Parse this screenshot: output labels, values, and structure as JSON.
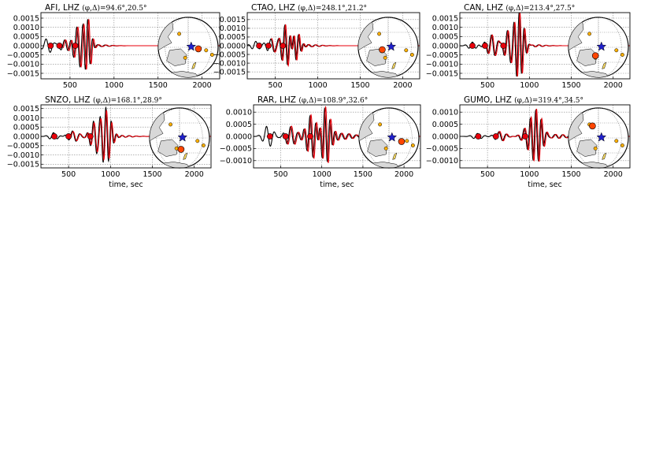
{
  "figure": {
    "colors": {
      "observed": "#000000",
      "synthetic": "#e8000b",
      "marker_face": "#e8000b",
      "grid": "#888888",
      "map_land": "#d8d8d8",
      "map_event": "#2020cc",
      "map_station": "#ff4500",
      "map_other": "#ffb000"
    },
    "icons": {
      "event": "blue-star-icon",
      "station": "orange-circle-icon",
      "other_stations": "yellow-circle-icon"
    }
  },
  "chart_data": [
    {
      "type": "line",
      "title_prefix": "AFI, LHZ",
      "title_angles": "(φ,Δ)=94.6°,20.5°",
      "xlabel": "",
      "ylabel": "",
      "xlim": [
        170,
        2200
      ],
      "ylim": [
        -0.0018,
        0.0018
      ],
      "xticks": [
        500,
        1000,
        1500,
        2000
      ],
      "xtick_labels": [
        "500",
        "1000",
        "1500",
        "2000"
      ],
      "yticks": [
        0.0015,
        0.001,
        0.0005,
        0.0,
        -0.0005,
        -0.001,
        -0.0015
      ],
      "ytick_labels": [
        "0.0015",
        "0.0010",
        "0.0005",
        "0.0000",
        "−0.0005",
        "−0.0010",
        "−0.0015"
      ],
      "grid": true,
      "markers_x": [
        280,
        380,
        560
      ],
      "packets": [
        {
          "center": 250,
          "width": 55,
          "period": 100,
          "amp": 0.0004,
          "phase": 1.5
        },
        {
          "center": 440,
          "width": 55,
          "period": 90,
          "amp": 0.0003,
          "phase": 0.0
        },
        {
          "center": 600,
          "width": 60,
          "period": 75,
          "amp": 0.0011,
          "phase": 2.0
        },
        {
          "center": 700,
          "width": 35,
          "period": 60,
          "amp": 0.0016,
          "phase": 0.0
        },
        {
          "center": 830,
          "width": 110,
          "period": 85,
          "amp": 5e-05,
          "phase": 1.0
        }
      ],
      "synthetic_scale": 1.0,
      "synthetic_shift": 12,
      "synthetic_start": 420,
      "map_station": {
        "dx": 0.34,
        "dy": 0.05
      }
    },
    {
      "type": "line",
      "title_prefix": "CTAO, LHZ",
      "title_angles": "(φ,Δ)=248.1°,21.2°",
      "xlabel": "",
      "ylabel": "",
      "xlim": [
        170,
        2200
      ],
      "ylim": [
        -0.0019,
        0.0019
      ],
      "xticks": [
        500,
        1000,
        1500,
        2000
      ],
      "xtick_labels": [
        "500",
        "1000",
        "1500",
        "2000"
      ],
      "yticks": [
        0.0015,
        0.001,
        0.0005,
        0.0,
        -0.0005,
        -0.001,
        -0.0015
      ],
      "ytick_labels": [
        "0.0015",
        "0.0010",
        "0.0005",
        "0.0000",
        "−0.0005",
        "−0.0010",
        "−0.0015"
      ],
      "grid": true,
      "markers_x": [
        310,
        420,
        590
      ],
      "packets": [
        {
          "center": 270,
          "width": 50,
          "period": 90,
          "amp": 0.00025,
          "phase": 0.0
        },
        {
          "center": 460,
          "width": 60,
          "period": 80,
          "amp": 0.0004,
          "phase": 1.0
        },
        {
          "center": 640,
          "width": 60,
          "period": 70,
          "amp": 0.0013,
          "phase": 2.5
        },
        {
          "center": 720,
          "width": 55,
          "period": 60,
          "amp": 0.0011,
          "phase": 0.5
        },
        {
          "center": 900,
          "width": 120,
          "period": 85,
          "amp": 6e-05,
          "phase": 1.0
        }
      ],
      "synthetic_scale": 1.05,
      "synthetic_shift": 10,
      "synthetic_start": 450,
      "map_station": {
        "dx": -0.2,
        "dy": 0.08
      }
    },
    {
      "type": "line",
      "title_prefix": "CAN, LHZ",
      "title_angles": "(φ,Δ)=213.4°,27.5°",
      "xlabel": "",
      "ylabel": "",
      "xlim": [
        170,
        2200
      ],
      "ylim": [
        -0.0018,
        0.0018
      ],
      "xticks": [
        500,
        1000,
        1500,
        2000
      ],
      "xtick_labels": [
        "500",
        "1000",
        "1500",
        "2000"
      ],
      "yticks": [
        0.0015,
        0.001,
        0.0005,
        0.0,
        -0.0005,
        -0.001,
        -0.0015
      ],
      "ytick_labels": [
        "0.0015",
        "0.0010",
        "0.0005",
        "0.0000",
        "−0.0005",
        "−0.0010",
        "−0.0015"
      ],
      "grid": true,
      "markers_x": [
        320,
        470,
        690
      ],
      "packets": [
        {
          "center": 320,
          "width": 50,
          "period": 90,
          "amp": 0.0002,
          "phase": 0.0
        },
        {
          "center": 560,
          "width": 65,
          "period": 85,
          "amp": 0.0006,
          "phase": 1.0
        },
        {
          "center": 760,
          "width": 60,
          "period": 75,
          "amp": 0.0009,
          "phase": 2.0
        },
        {
          "center": 880,
          "width": 50,
          "period": 60,
          "amp": 0.0017,
          "phase": 0.3
        },
        {
          "center": 1040,
          "width": 120,
          "period": 85,
          "amp": 6e-05,
          "phase": 1.0
        }
      ],
      "synthetic_scale": 1.0,
      "synthetic_shift": 10,
      "synthetic_start": 480,
      "map_station": {
        "dx": -0.1,
        "dy": 0.28
      }
    },
    {
      "type": "line",
      "title_prefix": "SNZO, LHZ",
      "title_angles": "(φ,Δ)=168.1°,28.9°",
      "xlabel": "time, sec",
      "ylabel": "",
      "xlim": [
        170,
        2200
      ],
      "ylim": [
        -0.0017,
        0.0017
      ],
      "xticks": [
        500,
        1000,
        1500,
        2000
      ],
      "xtick_labels": [
        "500",
        "1000",
        "1500",
        "2000"
      ],
      "yticks": [
        0.0015,
        0.001,
        0.0005,
        0.0,
        -0.0005,
        -0.001,
        -0.0015
      ],
      "ytick_labels": [
        "0.0015",
        "0.0010",
        "0.0005",
        "0.0000",
        "−0.0005",
        "−0.0010",
        "−0.0015"
      ],
      "grid": true,
      "markers_x": [
        330,
        500,
        760
      ],
      "packets": [
        {
          "center": 320,
          "width": 50,
          "period": 95,
          "amp": 0.0002,
          "phase": 0.0
        },
        {
          "center": 560,
          "width": 60,
          "period": 90,
          "amp": 0.0003,
          "phase": 1.0
        },
        {
          "center": 820,
          "width": 55,
          "period": 75,
          "amp": 0.0009,
          "phase": 2.0
        },
        {
          "center": 950,
          "width": 55,
          "period": 65,
          "amp": 0.0015,
          "phase": 0.5
        },
        {
          "center": 1150,
          "width": 120,
          "period": 85,
          "amp": 5e-05,
          "phase": 1.0
        }
      ],
      "synthetic_scale": 0.9,
      "synthetic_shift": 8,
      "synthetic_start": 520,
      "map_station": {
        "dx": 0.05,
        "dy": 0.38
      }
    },
    {
      "type": "line",
      "title_prefix": "RAR, LHZ",
      "title_angles": "(φ,Δ)=108.9°,32.6°",
      "xlabel": "time, sec",
      "ylabel": "",
      "xlim": [
        170,
        2200
      ],
      "ylim": [
        -0.0013,
        0.0013
      ],
      "xticks": [
        500,
        1000,
        1500,
        2000
      ],
      "xtick_labels": [
        "500",
        "1000",
        "1500",
        "2000"
      ],
      "yticks": [
        0.001,
        0.0005,
        0.0,
        -0.0005,
        -0.001
      ],
      "ytick_labels": [
        "0.0010",
        "0.0005",
        "0.0000",
        "−0.0005",
        "−0.0010"
      ],
      "grid": true,
      "markers_x": [
        370,
        560,
        860
      ],
      "packets": [
        {
          "center": 350,
          "width": 55,
          "period": 100,
          "amp": 0.00045,
          "phase": 1.5
        },
        {
          "center": 620,
          "width": 60,
          "period": 90,
          "amp": 0.0004,
          "phase": 0.0
        },
        {
          "center": 880,
          "width": 65,
          "period": 75,
          "amp": 0.0009,
          "phase": 2.0
        },
        {
          "center": 1040,
          "width": 60,
          "period": 65,
          "amp": 0.0012,
          "phase": 0.5
        },
        {
          "center": 1250,
          "width": 140,
          "period": 90,
          "amp": 0.00012,
          "phase": 1.0
        }
      ],
      "synthetic_scale": 1.05,
      "synthetic_shift": 12,
      "synthetic_start": 560,
      "map_station": {
        "dx": 0.42,
        "dy": 0.12
      }
    },
    {
      "type": "line",
      "title_prefix": "GUMO, LHZ",
      "title_angles": "(φ,Δ)=319.4°,34.5°",
      "xlabel": "time, sec",
      "ylabel": "",
      "xlim": [
        170,
        2200
      ],
      "ylim": [
        -0.0013,
        0.0013
      ],
      "xticks": [
        500,
        1000,
        1500,
        2000
      ],
      "xtick_labels": [
        "500",
        "1000",
        "1500",
        "2000"
      ],
      "yticks": [
        0.001,
        0.0005,
        0.0,
        -0.0005,
        -0.001
      ],
      "ytick_labels": [
        "0.0010",
        "0.0005",
        "0.0000",
        "−0.0005",
        "−0.0010"
      ],
      "grid": true,
      "markers_x": [
        390,
        600,
        950
      ],
      "packets": [
        {
          "center": 380,
          "width": 55,
          "period": 95,
          "amp": 0.00012,
          "phase": 0.0
        },
        {
          "center": 650,
          "width": 60,
          "period": 90,
          "amp": 0.0002,
          "phase": 1.0
        },
        {
          "center": 960,
          "width": 55,
          "period": 80,
          "amp": 0.0003,
          "phase": 2.0
        },
        {
          "center": 1080,
          "width": 60,
          "period": 65,
          "amp": 0.0011,
          "phase": 0.5
        },
        {
          "center": 1320,
          "width": 140,
          "period": 90,
          "amp": 8e-05,
          "phase": 1.0
        }
      ],
      "synthetic_scale": 1.05,
      "synthetic_shift": 10,
      "synthetic_start": 620,
      "map_station": {
        "dx": -0.2,
        "dy": -0.4
      }
    }
  ]
}
